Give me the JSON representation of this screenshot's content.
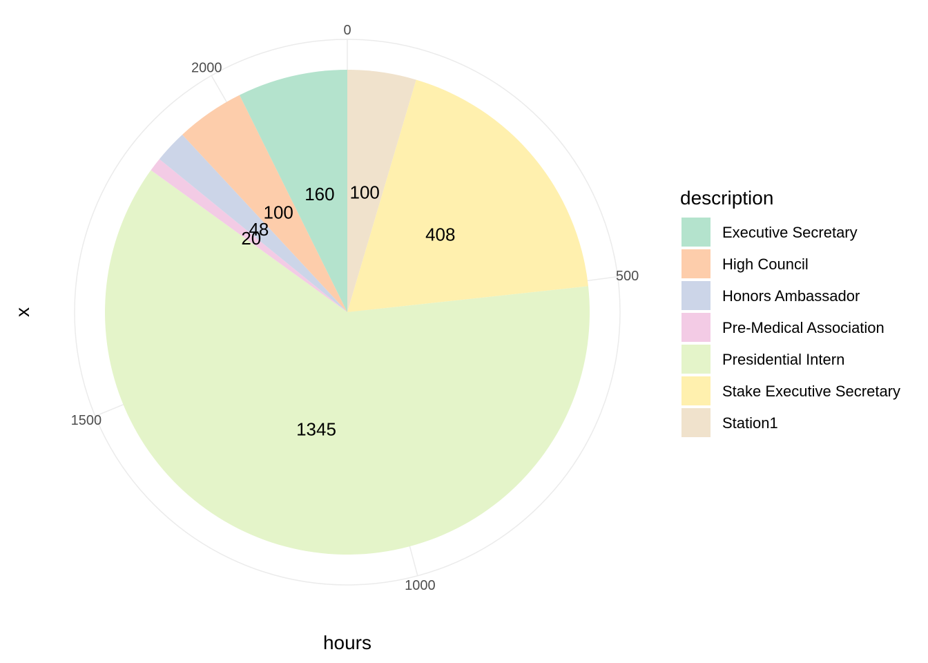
{
  "chart_data": {
    "type": "pie",
    "xlabel": "hours",
    "ylabel": "x",
    "legend_title": "description",
    "legend_position": "right",
    "grid": true,
    "theta_ticks": [
      0,
      500,
      1000,
      1500,
      2000
    ],
    "slices": [
      {
        "label": "Station1",
        "value": 100,
        "color": "#F0E2CC"
      },
      {
        "label": "Stake Executive Secretary",
        "value": 408,
        "color": "#FFF0AE"
      },
      {
        "label": "Presidential Intern",
        "value": 1345,
        "color": "#E4F4C9"
      },
      {
        "label": "Pre-Medical Association",
        "value": 20,
        "color": "#F3CBE5"
      },
      {
        "label": "Honors Ambassador",
        "value": 48,
        "color": "#CCD5E8"
      },
      {
        "label": "High Council",
        "value": 100,
        "color": "#FDCDAB"
      },
      {
        "label": "Executive Secretary",
        "value": 160,
        "color": "#B4E3CD"
      }
    ],
    "legend_order": [
      "Executive Secretary",
      "High Council",
      "Honors Ambassador",
      "Pre-Medical Association",
      "Presidential Intern",
      "Stake Executive Secretary",
      "Station1"
    ]
  }
}
